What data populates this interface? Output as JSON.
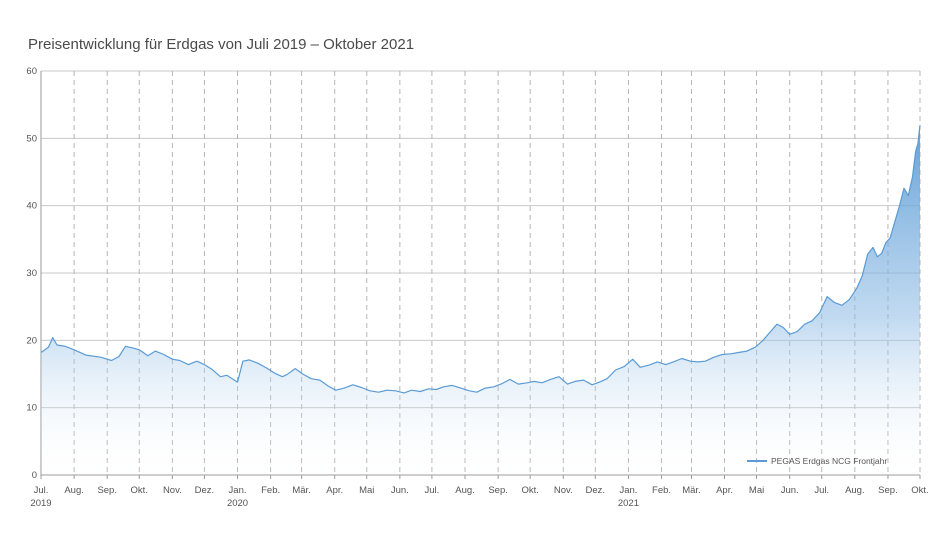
{
  "chart_data": {
    "type": "area",
    "title": "Preisentwicklung für Erdgas von Juli 2019 – Oktober 2021",
    "xlabel": "",
    "ylabel": "",
    "ylim": [
      0,
      60
    ],
    "yticks": [
      0,
      10,
      20,
      30,
      40,
      50,
      60
    ],
    "grid": true,
    "legend_position": "bottom-right",
    "x_axis": {
      "start": "2019-07",
      "end": "2021-10",
      "months": [
        {
          "label": "Jul.",
          "year": "2019"
        },
        {
          "label": "Aug.",
          "year": ""
        },
        {
          "label": "Sep.",
          "year": ""
        },
        {
          "label": "Okt.",
          "year": ""
        },
        {
          "label": "Nov.",
          "year": ""
        },
        {
          "label": "Dez.",
          "year": ""
        },
        {
          "label": "Jan.",
          "year": "2020"
        },
        {
          "label": "Feb.",
          "year": ""
        },
        {
          "label": "Mär.",
          "year": ""
        },
        {
          "label": "Apr.",
          "year": ""
        },
        {
          "label": "Mai",
          "year": ""
        },
        {
          "label": "Jun.",
          "year": ""
        },
        {
          "label": "Jul.",
          "year": ""
        },
        {
          "label": "Aug.",
          "year": ""
        },
        {
          "label": "Sep.",
          "year": ""
        },
        {
          "label": "Okt.",
          "year": ""
        },
        {
          "label": "Nov.",
          "year": ""
        },
        {
          "label": "Dez.",
          "year": ""
        },
        {
          "label": "Jan.",
          "year": "2021"
        },
        {
          "label": "Feb.",
          "year": ""
        },
        {
          "label": "Mär.",
          "year": ""
        },
        {
          "label": "Apr.",
          "year": ""
        },
        {
          "label": "Mai",
          "year": ""
        },
        {
          "label": "Jun.",
          "year": ""
        },
        {
          "label": "Jul.",
          "year": ""
        },
        {
          "label": "Aug.",
          "year": ""
        },
        {
          "label": "Sep.",
          "year": ""
        },
        {
          "label": "Okt.",
          "year": ""
        }
      ]
    },
    "series": [
      {
        "name": "PEGAS Erdgas NCG Frontjahr",
        "color": "#5b9bd5",
        "points": [
          [
            "2019-07-01",
            18.2
          ],
          [
            "2019-07-08",
            19.0
          ],
          [
            "2019-07-12",
            20.4
          ],
          [
            "2019-07-16",
            19.3
          ],
          [
            "2019-07-24",
            19.1
          ],
          [
            "2019-08-01",
            18.6
          ],
          [
            "2019-08-12",
            17.8
          ],
          [
            "2019-08-26",
            17.5
          ],
          [
            "2019-09-05",
            17.0
          ],
          [
            "2019-09-12",
            17.6
          ],
          [
            "2019-09-18",
            19.1
          ],
          [
            "2019-09-24",
            18.9
          ],
          [
            "2019-10-01",
            18.6
          ],
          [
            "2019-10-09",
            17.7
          ],
          [
            "2019-10-16",
            18.4
          ],
          [
            "2019-10-24",
            17.9
          ],
          [
            "2019-11-01",
            17.2
          ],
          [
            "2019-11-08",
            17.0
          ],
          [
            "2019-11-16",
            16.4
          ],
          [
            "2019-11-24",
            16.9
          ],
          [
            "2019-12-01",
            16.4
          ],
          [
            "2019-12-08",
            15.7
          ],
          [
            "2019-12-16",
            14.6
          ],
          [
            "2019-12-22",
            14.8
          ],
          [
            "2020-01-01",
            13.8
          ],
          [
            "2020-01-06",
            16.9
          ],
          [
            "2020-01-12",
            17.1
          ],
          [
            "2020-01-20",
            16.6
          ],
          [
            "2020-01-28",
            15.9
          ],
          [
            "2020-02-05",
            15.1
          ],
          [
            "2020-02-12",
            14.6
          ],
          [
            "2020-02-16",
            14.9
          ],
          [
            "2020-02-24",
            15.8
          ],
          [
            "2020-03-02",
            15.0
          ],
          [
            "2020-03-10",
            14.3
          ],
          [
            "2020-03-18",
            14.1
          ],
          [
            "2020-03-26",
            13.2
          ],
          [
            "2020-04-02",
            12.6
          ],
          [
            "2020-04-10",
            12.9
          ],
          [
            "2020-04-18",
            13.4
          ],
          [
            "2020-04-26",
            13.0
          ],
          [
            "2020-05-04",
            12.5
          ],
          [
            "2020-05-12",
            12.3
          ],
          [
            "2020-05-20",
            12.6
          ],
          [
            "2020-05-28",
            12.5
          ],
          [
            "2020-06-05",
            12.2
          ],
          [
            "2020-06-12",
            12.6
          ],
          [
            "2020-06-20",
            12.4
          ],
          [
            "2020-06-28",
            12.8
          ],
          [
            "2020-07-05",
            12.7
          ],
          [
            "2020-07-12",
            13.1
          ],
          [
            "2020-07-20",
            13.3
          ],
          [
            "2020-07-28",
            12.9
          ],
          [
            "2020-08-05",
            12.5
          ],
          [
            "2020-08-12",
            12.3
          ],
          [
            "2020-08-20",
            12.9
          ],
          [
            "2020-08-28",
            13.1
          ],
          [
            "2020-09-05",
            13.6
          ],
          [
            "2020-09-12",
            14.2
          ],
          [
            "2020-09-20",
            13.5
          ],
          [
            "2020-09-28",
            13.7
          ],
          [
            "2020-10-05",
            13.9
          ],
          [
            "2020-10-12",
            13.7
          ],
          [
            "2020-10-20",
            14.2
          ],
          [
            "2020-10-28",
            14.6
          ],
          [
            "2020-11-05",
            13.5
          ],
          [
            "2020-11-12",
            13.9
          ],
          [
            "2020-11-20",
            14.1
          ],
          [
            "2020-11-28",
            13.4
          ],
          [
            "2020-12-05",
            13.8
          ],
          [
            "2020-12-12",
            14.3
          ],
          [
            "2020-12-20",
            15.6
          ],
          [
            "2020-12-28",
            16.1
          ],
          [
            "2021-01-05",
            17.2
          ],
          [
            "2021-01-12",
            16.0
          ],
          [
            "2021-01-20",
            16.3
          ],
          [
            "2021-01-28",
            16.8
          ],
          [
            "2021-02-05",
            16.4
          ],
          [
            "2021-02-12",
            16.8
          ],
          [
            "2021-02-20",
            17.3
          ],
          [
            "2021-02-28",
            16.9
          ],
          [
            "2021-03-07",
            16.8
          ],
          [
            "2021-03-14",
            16.9
          ],
          [
            "2021-03-22",
            17.5
          ],
          [
            "2021-03-30",
            17.9
          ],
          [
            "2021-04-07",
            18.0
          ],
          [
            "2021-04-14",
            18.2
          ],
          [
            "2021-04-22",
            18.4
          ],
          [
            "2021-04-30",
            19.0
          ],
          [
            "2021-05-07",
            20.0
          ],
          [
            "2021-05-14",
            21.3
          ],
          [
            "2021-05-20",
            22.4
          ],
          [
            "2021-05-26",
            21.9
          ],
          [
            "2021-06-01",
            20.9
          ],
          [
            "2021-06-08",
            21.3
          ],
          [
            "2021-06-15",
            22.4
          ],
          [
            "2021-06-22",
            22.9
          ],
          [
            "2021-06-29",
            24.1
          ],
          [
            "2021-07-06",
            26.5
          ],
          [
            "2021-07-13",
            25.6
          ],
          [
            "2021-07-20",
            25.2
          ],
          [
            "2021-07-27",
            26.1
          ],
          [
            "2021-08-03",
            27.8
          ],
          [
            "2021-08-08",
            29.6
          ],
          [
            "2021-08-13",
            32.8
          ],
          [
            "2021-08-18",
            33.8
          ],
          [
            "2021-08-22",
            32.4
          ],
          [
            "2021-08-26",
            32.9
          ],
          [
            "2021-08-30",
            34.5
          ],
          [
            "2021-09-03",
            35.2
          ],
          [
            "2021-09-08",
            37.9
          ],
          [
            "2021-09-12",
            40.1
          ],
          [
            "2021-09-16",
            42.6
          ],
          [
            "2021-09-20",
            41.5
          ],
          [
            "2021-09-24",
            44.3
          ],
          [
            "2021-09-27",
            48.1
          ],
          [
            "2021-09-29",
            49.2
          ],
          [
            "2021-10-01",
            52.0
          ]
        ]
      }
    ]
  }
}
